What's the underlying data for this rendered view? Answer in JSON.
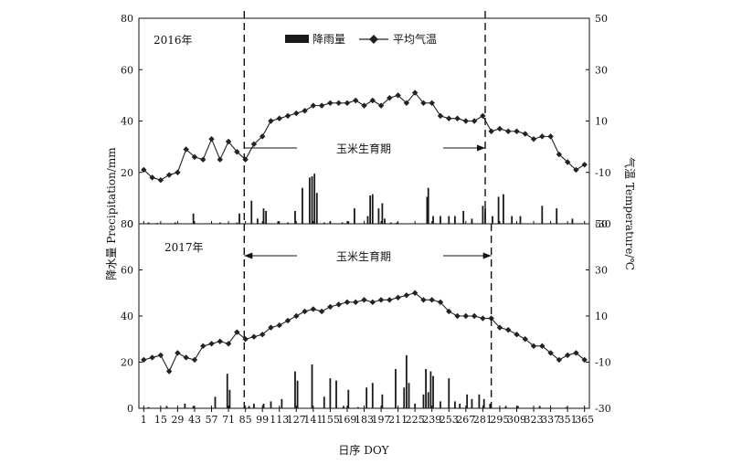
{
  "chart_data": [
    {
      "type": "bar+line",
      "panel_label": "2016年",
      "legend": {
        "precip": "降雨量",
        "temp": "平均气温"
      },
      "annotation": "玉米生育期",
      "growth_period_doy": [
        84,
        283
      ],
      "y_left_lim": [
        0,
        80
      ],
      "y_left_ticks": [
        "0",
        "20",
        "40",
        "60",
        "80"
      ],
      "y_right_lim": [
        -30,
        50
      ],
      "y_right_ticks": [
        "-30",
        "-10",
        "10",
        "30",
        "50"
      ],
      "temperature": {
        "doy": [
          1,
          8,
          15,
          22,
          29,
          36,
          43,
          50,
          57,
          64,
          71,
          78,
          85,
          92,
          99,
          106,
          113,
          120,
          127,
          134,
          141,
          148,
          155,
          162,
          169,
          176,
          183,
          190,
          197,
          204,
          211,
          218,
          225,
          232,
          239,
          246,
          253,
          260,
          267,
          274,
          281,
          288,
          295,
          302,
          309,
          316,
          323,
          330,
          337,
          344,
          351,
          358,
          365
        ],
        "values": [
          -9,
          -12,
          -13,
          -11,
          -10,
          -1,
          -4,
          -5,
          3,
          -5,
          2,
          -2,
          -5,
          1,
          4,
          10,
          11,
          12,
          13,
          14,
          16,
          16,
          17,
          17,
          17,
          18,
          16,
          18,
          16,
          19,
          20,
          17,
          21,
          17,
          17,
          12,
          11,
          11,
          10,
          10,
          12,
          6,
          7,
          6,
          6,
          5,
          3,
          4,
          4,
          -3,
          -6,
          -9,
          -7
        ]
      },
      "precipitation": {
        "doy": [
          5,
          12,
          27,
          42,
          64,
          78,
          80,
          90,
          95,
          100,
          102,
          112,
          120,
          126,
          132,
          138,
          140,
          142,
          144,
          150,
          155,
          165,
          170,
          175,
          186,
          188,
          190,
          195,
          198,
          200,
          205,
          210,
          235,
          236,
          240,
          246,
          253,
          258,
          265,
          272,
          281,
          283,
          289,
          294,
          298,
          305,
          312,
          330,
          342,
          355
        ],
        "values": [
          0.5,
          0.3,
          0.5,
          4,
          0.5,
          0.5,
          4,
          9,
          2,
          6,
          5,
          1,
          0.5,
          5,
          14,
          18,
          18.5,
          19.5,
          12,
          0.5,
          1,
          0.5,
          1,
          6,
          3,
          11,
          11.5,
          6,
          8,
          2,
          0.5,
          0.5,
          10.5,
          14,
          3,
          3,
          3,
          3,
          5,
          2,
          7,
          6,
          3,
          10.5,
          11.5,
          3,
          3,
          7,
          6,
          2
        ]
      }
    },
    {
      "type": "bar+line",
      "panel_label": "2017年",
      "annotation": "玉米生育期",
      "growth_period_doy": [
        84,
        288
      ],
      "y_left_lim": [
        0,
        80
      ],
      "y_left_ticks": [
        "0",
        "20",
        "40",
        "60",
        "80"
      ],
      "y_right_lim": [
        -30,
        50
      ],
      "y_right_ticks": [
        "-30",
        "-10",
        "10",
        "30",
        "50"
      ],
      "temperature": {
        "doy": [
          1,
          8,
          15,
          22,
          29,
          36,
          43,
          50,
          57,
          64,
          71,
          78,
          85,
          92,
          99,
          106,
          113,
          120,
          127,
          134,
          141,
          148,
          155,
          162,
          169,
          176,
          183,
          190,
          197,
          204,
          211,
          218,
          225,
          232,
          239,
          246,
          253,
          260,
          267,
          274,
          281,
          288,
          295,
          302,
          309,
          316,
          323,
          330,
          337,
          344,
          351,
          358,
          365
        ],
        "values": [
          -9,
          -8,
          -7,
          -14,
          -6,
          -8,
          -9,
          -3,
          -2,
          -1,
          -2,
          3,
          0,
          1,
          2,
          5,
          6,
          8,
          10,
          12,
          13,
          12,
          14,
          15,
          16,
          16,
          17,
          16,
          17,
          17,
          18,
          19,
          20,
          17,
          17,
          16,
          12,
          10,
          10,
          10,
          9,
          9,
          5,
          4,
          2,
          0,
          -3,
          -3,
          -6,
          -9,
          -7,
          -6,
          -9
        ]
      },
      "precipitation": {
        "doy": [
          5,
          20,
          35,
          42,
          60,
          70,
          72,
          88,
          92,
          100,
          106,
          115,
          126,
          128,
          140,
          150,
          155,
          160,
          166,
          170,
          178,
          185,
          190,
          198,
          209,
          216,
          218,
          220,
          225,
          232,
          234,
          236,
          238,
          240,
          246,
          253,
          258,
          262,
          268,
          272,
          278,
          282,
          287,
          300,
          310,
          328,
          350
        ],
        "values": [
          0.5,
          1,
          2,
          1,
          5,
          15,
          8,
          1,
          2,
          2,
          3,
          4,
          16,
          12,
          19,
          5,
          13,
          12,
          1,
          8,
          0.5,
          9,
          11,
          6,
          17,
          9,
          23,
          11,
          2,
          6,
          17,
          7,
          16,
          14,
          3,
          13,
          3,
          2,
          6,
          4,
          6,
          4,
          2,
          1,
          1,
          1,
          0.5
        ]
      }
    }
  ],
  "axes": {
    "x_ticks": [
      "1",
      "15",
      "29",
      "43",
      "57",
      "71",
      "85",
      "99",
      "113",
      "127",
      "141",
      "155",
      "169",
      "183",
      "197",
      "211",
      "225",
      "239",
      "253",
      "267",
      "281",
      "295",
      "309",
      "323",
      "337",
      "351",
      "365"
    ],
    "x_label": "日序 DOY",
    "y_left_label": "降水量 Precipitation/mm",
    "y_right_label": "气温 Temperature/℃"
  }
}
